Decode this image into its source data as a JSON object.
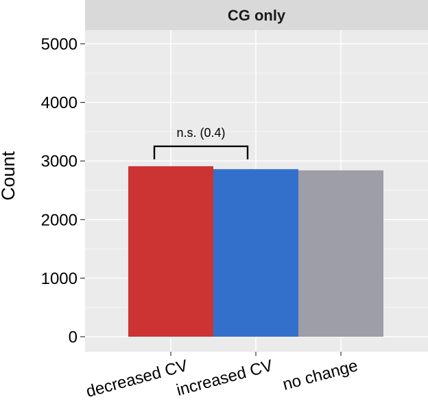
{
  "chart_data": {
    "type": "bar",
    "facet_title": "CG only",
    "xlabel": "",
    "ylabel": "Count",
    "categories": [
      "decreased CV",
      "increased CV",
      "no change"
    ],
    "values": [
      2910,
      2860,
      2840
    ],
    "colors": [
      "#CC3333",
      "#3370CC",
      "#9E9EA8"
    ],
    "ylim": [
      0,
      5250
    ],
    "yticks": [
      0,
      1000,
      2000,
      3000,
      4000,
      5000
    ],
    "ytick_labels": [
      "0",
      "1000",
      "2000",
      "3000",
      "4000",
      "5000"
    ],
    "grid": true,
    "legend": "none",
    "annotation": {
      "text": "n.s. (0.4)",
      "between": [
        "decreased CV",
        "increased CV"
      ],
      "y": 3250
    }
  }
}
